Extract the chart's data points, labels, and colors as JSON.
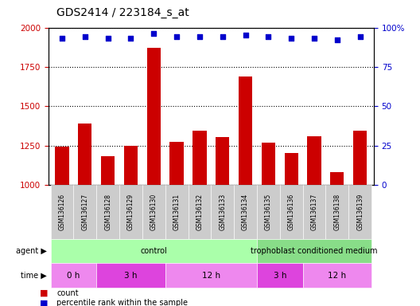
{
  "title": "GDS2414 / 223184_s_at",
  "samples": [
    "GSM136126",
    "GSM136127",
    "GSM136128",
    "GSM136129",
    "GSM136130",
    "GSM136131",
    "GSM136132",
    "GSM136133",
    "GSM136134",
    "GSM136135",
    "GSM136136",
    "GSM136137",
    "GSM136138",
    "GSM136139"
  ],
  "counts": [
    1245,
    1390,
    1185,
    1250,
    1870,
    1275,
    1345,
    1305,
    1690,
    1270,
    1205,
    1310,
    1080,
    1345
  ],
  "percentile": [
    93,
    94,
    93,
    93,
    96,
    94,
    94,
    94,
    95,
    94,
    93,
    93,
    92,
    94
  ],
  "ylim_left": [
    1000,
    2000
  ],
  "ylim_right": [
    0,
    100
  ],
  "yticks_left": [
    1000,
    1250,
    1500,
    1750,
    2000
  ],
  "yticks_right": [
    0,
    25,
    50,
    75,
    100
  ],
  "bar_color": "#cc0000",
  "dot_color": "#0000cc",
  "grid_color": "#000000",
  "bg_color": "#ffffff",
  "agent_groups": [
    {
      "label": "control",
      "start": 0,
      "end": 9,
      "color": "#aaffaa"
    },
    {
      "label": "trophoblast conditioned medium",
      "start": 9,
      "end": 14,
      "color": "#88dd88"
    }
  ],
  "time_groups": [
    {
      "label": "0 h",
      "start": 0,
      "end": 2,
      "color": "#ee88ee"
    },
    {
      "label": "3 h",
      "start": 2,
      "end": 5,
      "color": "#dd44dd"
    },
    {
      "label": "12 h",
      "start": 5,
      "end": 9,
      "color": "#ee88ee"
    },
    {
      "label": "3 h",
      "start": 9,
      "end": 11,
      "color": "#dd44dd"
    },
    {
      "label": "12 h",
      "start": 11,
      "end": 14,
      "color": "#ee88ee"
    }
  ],
  "bar_color_rgb": "#cc0000",
  "dot_color_rgb": "#0000cc",
  "ylabel_left_color": "#cc0000",
  "ylabel_right_color": "#0000cc"
}
